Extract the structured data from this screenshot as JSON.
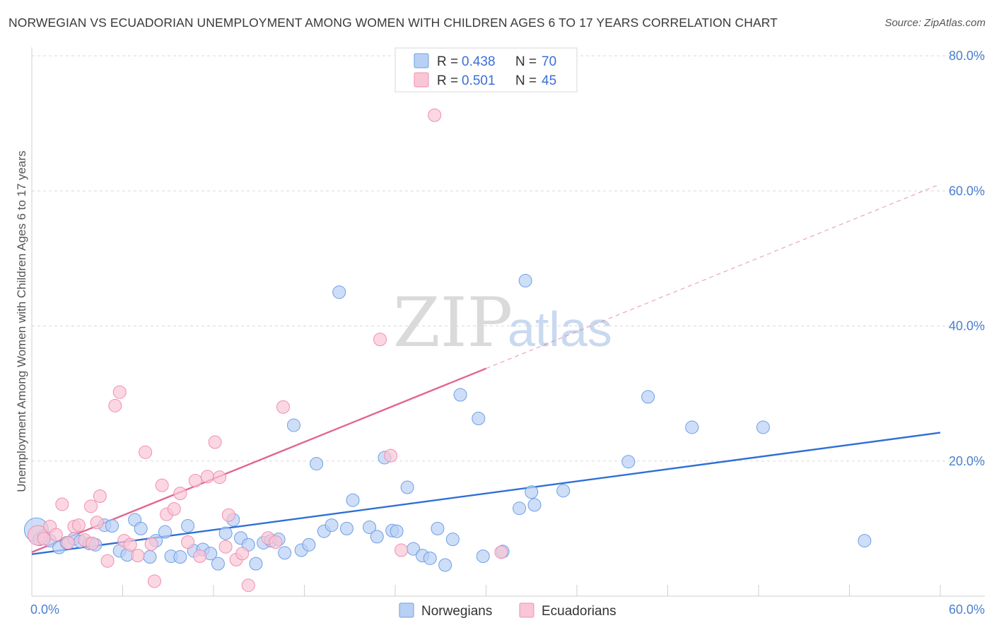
{
  "title": "NORWEGIAN VS ECUADORIAN UNEMPLOYMENT AMONG WOMEN WITH CHILDREN AGES 6 TO 17 YEARS CORRELATION CHART",
  "source": "Source: ZipAtlas.com",
  "watermark": {
    "zip": "ZIP",
    "atlas": "atlas"
  },
  "legend": {
    "r_label": "R =",
    "n_label": "N =",
    "rows": [
      {
        "r": "0.438",
        "n": "70",
        "color": "#a9c6f2"
      },
      {
        "r": "0.501",
        "n": "45",
        "color": "#f7b8cc"
      }
    ]
  },
  "chart_data": {
    "type": "scatter",
    "title": "NORWEGIAN VS ECUADORIAN UNEMPLOYMENT AMONG WOMEN WITH CHILDREN AGES 6 TO 17 YEARS CORRELATION CHART",
    "xlabel": "",
    "ylabel": "Unemployment Among Women with Children Ages 6 to 17 years",
    "xlim": [
      0,
      60
    ],
    "ylim": [
      0,
      80
    ],
    "x_tick_labels": [
      "0.0%",
      "60.0%"
    ],
    "y_tick_values": [
      20,
      40,
      60,
      80
    ],
    "y_tick_labels": [
      "20.0%",
      "40.0%",
      "60.0%",
      "80.0%"
    ],
    "grid": true,
    "legend_position": "top-center",
    "series": [
      {
        "name": "Norwegians",
        "color": "#6d9fe3",
        "fill": "#b9d0f5",
        "line_color": "#2f6fd6",
        "trend": {
          "x0": 0.0,
          "y0": 6.2,
          "x1": 60.0,
          "y1": 24.2
        },
        "points": [
          [
            0.3,
            9.8
          ],
          [
            0.5,
            8.4
          ],
          [
            0.8,
            8.9
          ],
          [
            1.2,
            8.2
          ],
          [
            1.8,
            7.2
          ],
          [
            2.3,
            7.9
          ],
          [
            2.8,
            8.5
          ],
          [
            3.2,
            8.1
          ],
          [
            3.8,
            7.8
          ],
          [
            4.2,
            7.6
          ],
          [
            4.8,
            10.5
          ],
          [
            5.3,
            10.4
          ],
          [
            5.8,
            6.7
          ],
          [
            6.3,
            6.1
          ],
          [
            6.8,
            11.3
          ],
          [
            7.2,
            10.0
          ],
          [
            7.8,
            5.8
          ],
          [
            8.2,
            8.2
          ],
          [
            8.8,
            9.5
          ],
          [
            9.2,
            5.9
          ],
          [
            9.8,
            5.8
          ],
          [
            10.3,
            10.4
          ],
          [
            10.7,
            6.7
          ],
          [
            11.3,
            6.9
          ],
          [
            11.8,
            6.3
          ],
          [
            12.3,
            4.8
          ],
          [
            12.8,
            9.3
          ],
          [
            13.3,
            11.3
          ],
          [
            13.8,
            8.6
          ],
          [
            14.3,
            7.6
          ],
          [
            14.8,
            4.8
          ],
          [
            15.3,
            7.9
          ],
          [
            15.8,
            8.2
          ],
          [
            16.3,
            8.4
          ],
          [
            16.7,
            6.4
          ],
          [
            17.3,
            25.3
          ],
          [
            17.8,
            6.8
          ],
          [
            18.3,
            7.6
          ],
          [
            18.8,
            19.6
          ],
          [
            19.3,
            9.6
          ],
          [
            19.8,
            10.5
          ],
          [
            20.3,
            45.0
          ],
          [
            20.8,
            10.0
          ],
          [
            21.2,
            14.2
          ],
          [
            22.3,
            10.2
          ],
          [
            22.8,
            8.8
          ],
          [
            23.3,
            20.5
          ],
          [
            23.8,
            9.7
          ],
          [
            24.1,
            9.6
          ],
          [
            24.8,
            16.1
          ],
          [
            25.2,
            7.0
          ],
          [
            25.8,
            6.0
          ],
          [
            26.3,
            5.6
          ],
          [
            26.8,
            10.0
          ],
          [
            27.3,
            4.6
          ],
          [
            27.8,
            8.4
          ],
          [
            28.3,
            29.8
          ],
          [
            29.5,
            26.3
          ],
          [
            29.8,
            5.9
          ],
          [
            31.1,
            6.6
          ],
          [
            32.2,
            13.0
          ],
          [
            32.6,
            46.7
          ],
          [
            33.0,
            15.4
          ],
          [
            33.2,
            13.5
          ],
          [
            35.1,
            15.6
          ],
          [
            39.4,
            19.9
          ],
          [
            40.7,
            29.5
          ],
          [
            43.6,
            25.0
          ],
          [
            48.3,
            25.0
          ],
          [
            55.0,
            8.2
          ]
        ]
      },
      {
        "name": "Ecuadorians",
        "color": "#f08fb0",
        "fill": "#f9c6d6",
        "line_color": "#e2668f",
        "trend": {
          "x0": 0.0,
          "y0": 6.5,
          "x1": 30.0,
          "y1": 33.7,
          "x_ext": 60.0,
          "y_ext": 61.0
        },
        "points": [
          [
            0.4,
            9.0
          ],
          [
            0.8,
            8.5
          ],
          [
            1.2,
            10.3
          ],
          [
            1.6,
            9.1
          ],
          [
            2.0,
            13.6
          ],
          [
            2.4,
            7.9
          ],
          [
            2.8,
            10.3
          ],
          [
            3.1,
            10.5
          ],
          [
            3.5,
            8.3
          ],
          [
            3.9,
            13.3
          ],
          [
            4.3,
            10.9
          ],
          [
            4.5,
            14.8
          ],
          [
            5.0,
            5.2
          ],
          [
            5.5,
            28.2
          ],
          [
            5.8,
            30.2
          ],
          [
            6.1,
            8.2
          ],
          [
            6.5,
            7.6
          ],
          [
            7.0,
            6.0
          ],
          [
            7.5,
            21.3
          ],
          [
            7.9,
            7.7
          ],
          [
            8.1,
            2.2
          ],
          [
            8.6,
            16.4
          ],
          [
            8.9,
            12.1
          ],
          [
            9.4,
            12.9
          ],
          [
            9.8,
            15.2
          ],
          [
            10.3,
            8.0
          ],
          [
            10.8,
            17.1
          ],
          [
            11.1,
            5.9
          ],
          [
            11.6,
            17.7
          ],
          [
            12.1,
            22.8
          ],
          [
            12.4,
            17.6
          ],
          [
            12.8,
            7.3
          ],
          [
            13.0,
            12.0
          ],
          [
            13.5,
            5.4
          ],
          [
            13.9,
            6.3
          ],
          [
            14.3,
            1.6
          ],
          [
            15.6,
            8.6
          ],
          [
            16.1,
            8.0
          ],
          [
            16.6,
            28.0
          ],
          [
            23.0,
            38.0
          ],
          [
            23.7,
            20.8
          ],
          [
            24.4,
            6.8
          ],
          [
            26.6,
            71.2
          ],
          [
            31.0,
            6.5
          ],
          [
            4.0,
            7.8
          ]
        ]
      }
    ]
  },
  "bottom_legend": {
    "items": [
      "Norwegians",
      "Ecuadorians"
    ]
  }
}
